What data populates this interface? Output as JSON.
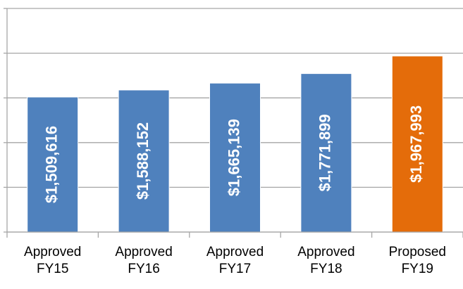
{
  "chart_data": {
    "type": "bar",
    "categories": [
      "Approved FY15",
      "Approved FY16",
      "Approved FY17",
      "Approved FY18",
      "Proposed FY19"
    ],
    "values": [
      1509616,
      1588152,
      1665139,
      1771899,
      1967993
    ],
    "value_labels": [
      "$1,509,616",
      "$1,588,152",
      "$1,665,139",
      "$1,771,899",
      "$1,967,993"
    ],
    "colors": [
      "#4f81bd",
      "#4f81bd",
      "#4f81bd",
      "#4f81bd",
      "#e46c0a"
    ],
    "ylim": [
      0,
      2500000
    ],
    "yticks": [
      0,
      500000,
      1000000,
      1500000,
      2000000,
      2500000
    ],
    "grid": true
  }
}
